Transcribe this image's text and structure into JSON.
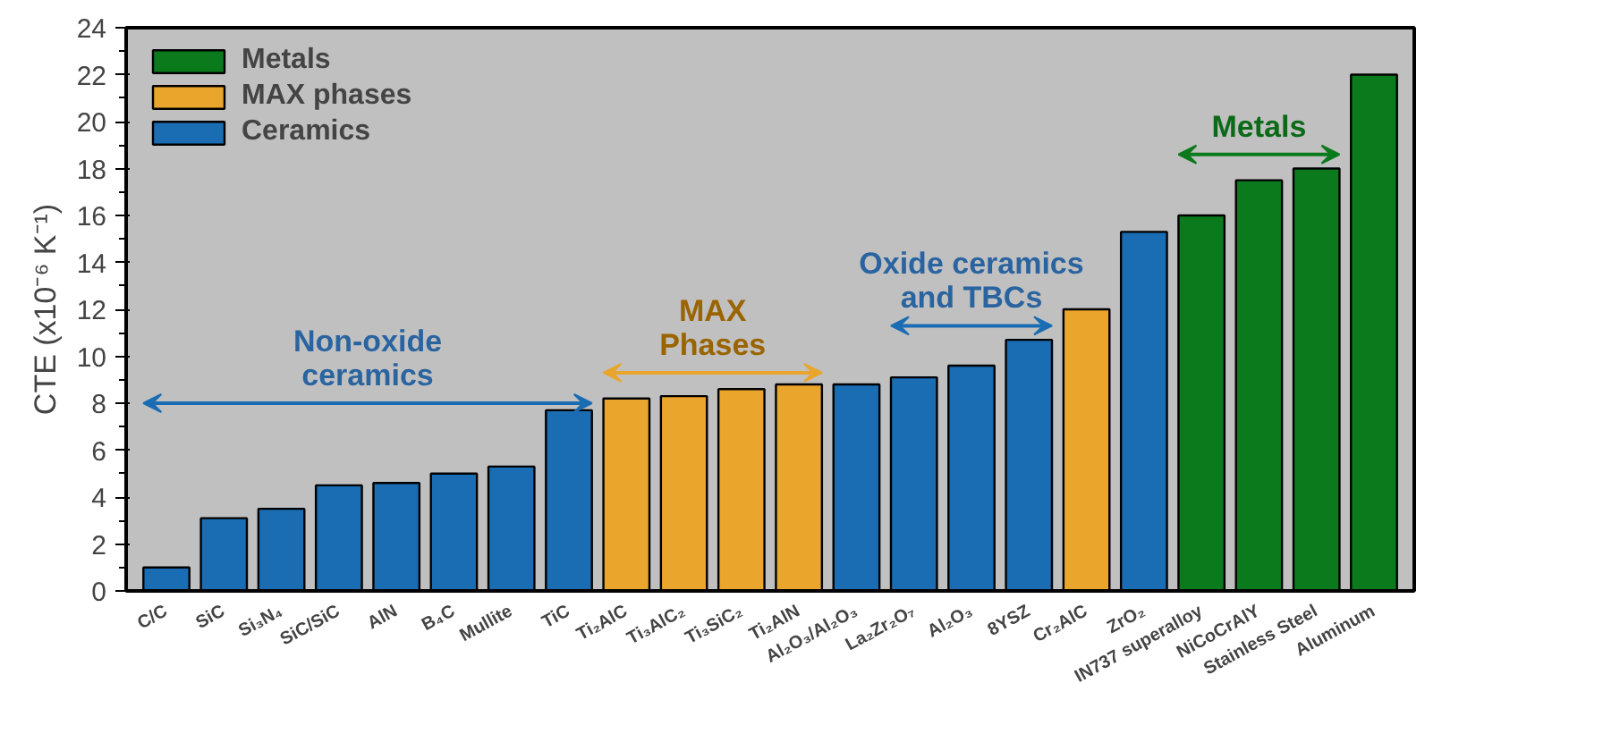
{
  "chart_data": {
    "type": "bar",
    "ylabel": "CTE (x10⁻⁶ K⁻¹)",
    "categories": [
      "C/C",
      "SiC",
      "Si₃N₄",
      "SiC/SiC",
      "AlN",
      "B₄C",
      "Mullite",
      "TiC",
      "Ti₂AlC",
      "Ti₃AlC₂",
      "Ti₃SiC₂",
      "Ti₂AlN",
      "Al₂O₃/Al₂O₃",
      "La₂Zr₂O₇",
      "Al₂O₃",
      "8YSZ",
      "Cr₂AlC",
      "ZrO₂",
      "IN737 superalloy",
      "NiCoCrAlY",
      "Stainless Steel",
      "Aluminum"
    ],
    "series": [
      {
        "name": "Metals",
        "color": "#0b7a1c",
        "values": [
          null,
          null,
          null,
          null,
          null,
          null,
          null,
          null,
          null,
          null,
          null,
          null,
          null,
          null,
          null,
          null,
          null,
          null,
          16.0,
          17.5,
          18.0,
          22.0
        ]
      },
      {
        "name": "MAX phases",
        "color": "#e9a52c",
        "values": [
          null,
          null,
          null,
          null,
          null,
          null,
          null,
          null,
          8.2,
          8.3,
          8.6,
          8.8,
          null,
          null,
          null,
          null,
          12.0,
          null,
          null,
          null,
          null,
          null
        ]
      },
      {
        "name": "Ceramics",
        "color": "#1a6db3",
        "values": [
          1.0,
          3.1,
          3.5,
          4.5,
          4.6,
          5.0,
          5.3,
          7.7,
          null,
          null,
          null,
          null,
          8.8,
          9.1,
          9.6,
          10.7,
          null,
          15.3,
          null,
          null,
          null,
          null
        ]
      }
    ],
    "ylim": [
      0,
      24
    ],
    "yticks": [
      0,
      2,
      4,
      6,
      8,
      10,
      12,
      14,
      16,
      18,
      20,
      22,
      24
    ],
    "legend": "top left",
    "annotations": [
      "Non-oxide\nceramics",
      "MAX\nPhases",
      "Oxide ceramics\nand TBCs",
      "Metals"
    ]
  }
}
